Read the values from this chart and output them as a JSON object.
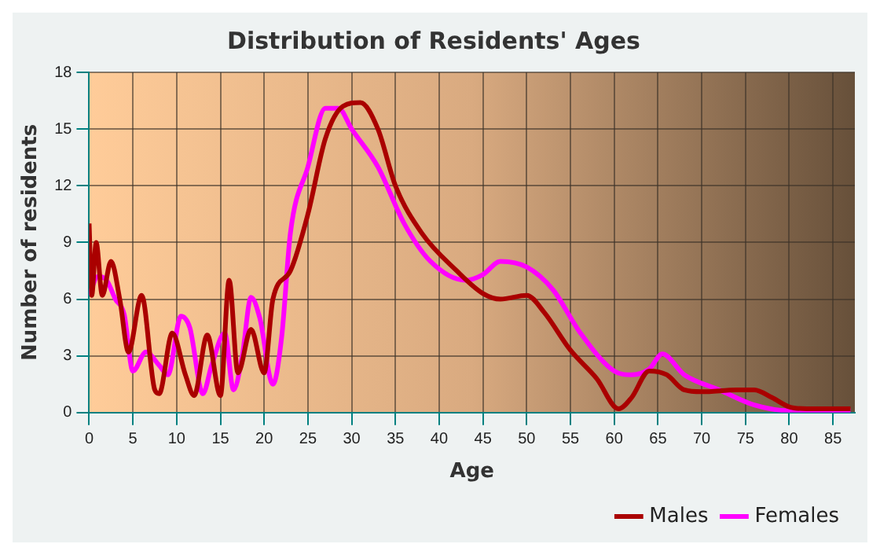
{
  "chart_data": {
    "type": "line",
    "title": "Distribution of Residents' Ages",
    "xlabel": "Age",
    "ylabel": "Number of residents",
    "xlim": [
      0,
      87.5
    ],
    "xticks": [
      0,
      5,
      10,
      15,
      20,
      25,
      30,
      35,
      40,
      45,
      50,
      55,
      60,
      65,
      70,
      75,
      80,
      85
    ],
    "ylim": [
      0,
      18
    ],
    "yticks": [
      0,
      3,
      6,
      9,
      12,
      15,
      18
    ],
    "grid": true,
    "legend": "bottom right",
    "marker": "none",
    "line_style": "solid",
    "series": [
      {
        "name": "Males",
        "color": "#aa0000",
        "x": [
          0,
          0.3,
          0.8,
          1.5,
          2.5,
          3.5,
          4.5,
          6,
          7.5,
          8,
          9.5,
          11,
          12,
          13.5,
          15,
          16,
          17,
          18.5,
          20,
          21,
          23,
          25,
          27,
          29,
          31,
          33,
          35,
          38,
          42,
          45,
          47,
          50,
          52,
          55,
          58,
          60.5,
          62,
          64,
          66,
          68,
          70,
          74,
          76,
          78,
          80,
          82,
          87
        ],
        "values": [
          10,
          6.2,
          9,
          6.2,
          8,
          6,
          3.2,
          6.2,
          1.2,
          1,
          4.2,
          2,
          0.9,
          4.1,
          0.9,
          7,
          2.1,
          4.4,
          2.1,
          6,
          7.5,
          10.5,
          14.5,
          16.2,
          16.4,
          15,
          12,
          9.5,
          7.5,
          6.3,
          6,
          6.2,
          5.3,
          3.3,
          1.8,
          0.2,
          0.8,
          2.2,
          2,
          1.2,
          1.1,
          1.2,
          1.2,
          0.8,
          0.3,
          0.2,
          0.2
        ]
      },
      {
        "name": "Females",
        "color": "#ff00ff",
        "x": [
          0,
          1,
          2,
          3,
          4,
          5,
          6.5,
          8,
          9,
          10.5,
          11.5,
          13,
          14,
          15.5,
          16.5,
          17.5,
          18.5,
          19.5,
          21,
          22,
          23,
          25,
          27,
          28.5,
          30,
          33,
          36,
          39,
          43,
          45,
          47,
          50,
          53,
          56,
          60,
          62,
          64,
          65.5,
          68,
          72,
          76,
          80,
          87
        ],
        "values": [
          6.2,
          7.2,
          7,
          6,
          5.2,
          2.2,
          3.2,
          2.5,
          2,
          5.1,
          4.5,
          1,
          2.5,
          4.2,
          1.2,
          3,
          6.1,
          5,
          1.5,
          4,
          9.5,
          13,
          16.1,
          16.1,
          15,
          13,
          10,
          8,
          7,
          7.3,
          8,
          7.7,
          6.5,
          4.3,
          2.2,
          2,
          2.3,
          3.1,
          2,
          1.2,
          0.4,
          0.1,
          0.1
        ]
      }
    ]
  }
}
